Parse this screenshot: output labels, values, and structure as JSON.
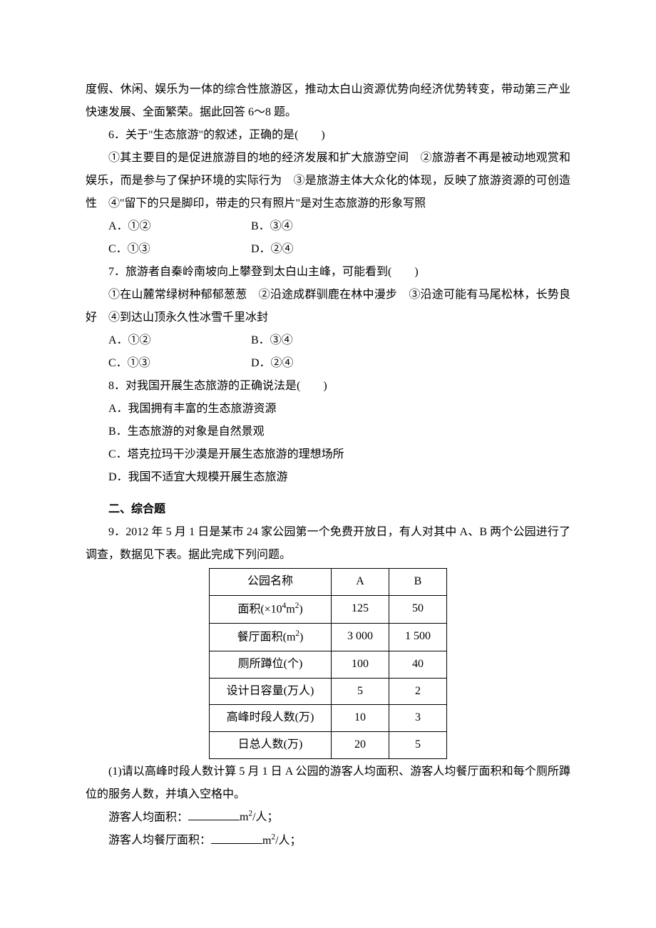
{
  "intro_passage": {
    "cont_line": "度假、休闲、娱乐为一体的综合性旅游区，推动太白山资源优势向经济优势转变，带动第三产业快速发展、全面繁荣。据此回答 6～8 题。"
  },
  "q6": {
    "stem": "6．关于\"生态旅游\"的叙述，正确的是(　　)",
    "items": "①其主要目的是促进旅游目的地的经济发展和扩大旅游空间　②旅游者不再是被动地观赏和娱乐，而是参与了保护环境的实际行为　③是旅游主体大众化的体现，反映了旅游资源的可创造性　④\"留下的只是脚印，带走的只有照片\"是对生态旅游的形象写照",
    "optA": "A．①②",
    "optB": "B．③④",
    "optC": "C．①③",
    "optD": "D．②④"
  },
  "q7": {
    "stem": "7．旅游者自秦岭南坡向上攀登到太白山主峰，可能看到(　　)",
    "items": "①在山麓常绿树种郁郁葱葱　②沿途成群驯鹿在林中漫步　③沿途可能有马尾松林，长势良好　④到达山顶永久性冰雪千里冰封",
    "optA": "A．①②",
    "optB": "B．③④",
    "optC": "C．①③",
    "optD": "D．②④"
  },
  "q8": {
    "stem": "8．对我国开展生态旅游的正确说法是(　　)",
    "optA": "A．我国拥有丰富的生态旅游资源",
    "optB": "B．生态旅游的对象是自然景观",
    "optC": "C．塔克拉玛干沙漠是开展生态旅游的理想场所",
    "optD": "D．我国不适宜大规模开展生态旅游"
  },
  "section2": {
    "heading": "二、综合题"
  },
  "q9": {
    "stem": "9．2012 年 5 月 1 日是某市 24 家公园第一个免费开放日，有人对其中 A、B 两个公园进行了调查，数据见下表。据此完成下列问题。",
    "table": {
      "columns": [
        "公园名称",
        "A",
        "B"
      ],
      "rows": [
        {
          "label_html": "面积(×10<sup>4</sup>m<sup>2</sup>)",
          "a": "125",
          "b": "50"
        },
        {
          "label_html": "餐厅面积(m<sup>2</sup>)",
          "a": "3 000",
          "b": "1 500"
        },
        {
          "label_html": "厕所蹲位(个)",
          "a": "100",
          "b": "40"
        },
        {
          "label_html": "设计日容量(万人)",
          "a": "5",
          "b": "2"
        },
        {
          "label_html": "高峰时段人数(万)",
          "a": "10",
          "b": "3"
        },
        {
          "label_html": "日总人数(万)",
          "a": "20",
          "b": "5"
        }
      ]
    },
    "sub1": "(1)请以高峰时段人数计算 5 月 1 日 A 公园的游客人均面积、游客人均餐厅面积和每个厕所蹲位的服务人数，并填入空格中。",
    "fill1_prefix": "游客人均面积：",
    "fill1_unit_html": "m<sup>2</sup>/人；",
    "fill2_prefix": "游客人均餐厅面积：",
    "fill2_unit_html": "m<sup>2</sup>/人；"
  }
}
